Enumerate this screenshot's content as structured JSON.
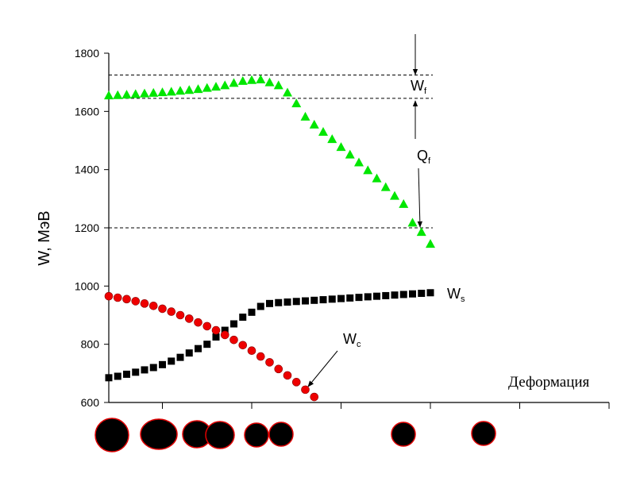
{
  "chart_data": {
    "type": "scatter",
    "ylabel": "W, МэВ",
    "xlabel": "Деформация",
    "x": [
      0,
      1,
      2,
      3,
      4,
      5,
      6,
      7,
      8,
      9,
      10,
      11,
      12,
      13,
      14,
      15,
      16,
      17,
      18,
      19,
      20,
      21,
      22,
      23,
      24,
      25,
      26,
      27,
      28,
      29,
      30,
      31,
      32,
      33,
      34,
      35,
      36
    ],
    "xlim": [
      0,
      56
    ],
    "xticks": [
      6,
      16,
      26,
      36,
      46,
      56
    ],
    "ylim": [
      600,
      1800
    ],
    "yticks": [
      600,
      800,
      1000,
      1200,
      1400,
      1600,
      1800
    ],
    "reference_lines": [
      1725,
      1645,
      1200
    ],
    "series": [
      {
        "marker": "triangle",
        "color": "#00e600",
        "values": [
          1655,
          1656,
          1658,
          1660,
          1662,
          1664,
          1666,
          1668,
          1671,
          1674,
          1677,
          1681,
          1685,
          1690,
          1698,
          1705,
          1708,
          1710,
          1700,
          1690,
          1665,
          1628,
          1582,
          1555,
          1530,
          1505,
          1478,
          1452,
          1425,
          1398,
          1370,
          1340,
          1310,
          1282,
          1218,
          1186,
          1145
        ]
      },
      {
        "marker": "square",
        "color": "#000000",
        "values": [
          685,
          690,
          697,
          704,
          712,
          720,
          730,
          742,
          755,
          770,
          785,
          800,
          825,
          848,
          870,
          893,
          910,
          930,
          940,
          943,
          945,
          947,
          949,
          951,
          953,
          955,
          957,
          959,
          961,
          963,
          965,
          967,
          969,
          971,
          973,
          975,
          977
        ]
      },
      {
        "marker": "circle",
        "color": "#ee0000",
        "values": [
          965,
          960,
          955,
          948,
          940,
          932,
          922,
          912,
          900,
          888,
          875,
          862,
          848,
          832,
          815,
          797,
          778,
          758,
          738,
          715,
          693,
          670,
          644,
          619,
          null,
          null,
          null,
          null,
          null,
          null,
          null,
          null,
          null,
          null,
          null,
          null,
          null
        ]
      }
    ],
    "annotations": [
      {
        "main": "W",
        "sub": "f"
      },
      {
        "main": "Q",
        "sub": "f"
      },
      {
        "main": "W",
        "sub": "s"
      },
      {
        "main": "W",
        "sub": "c"
      }
    ]
  }
}
